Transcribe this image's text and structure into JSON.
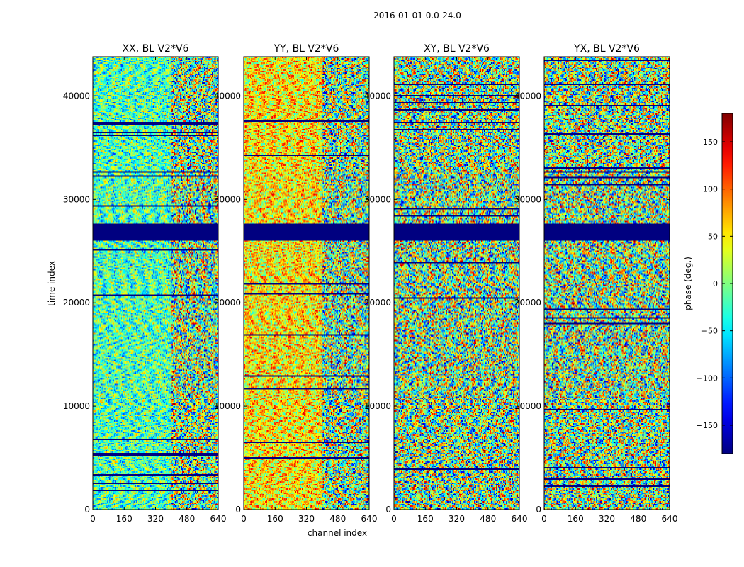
{
  "figure": {
    "suptitle": "2016-01-01 0.0-24.0",
    "xlabel": "channel index",
    "ylabel": "time index"
  },
  "chart_data": {
    "type": "heatmap",
    "panels": [
      {
        "title": "XX, BL V2*V6",
        "hint": "xx"
      },
      {
        "title": "YY, BL V2*V6",
        "hint": "yy"
      },
      {
        "title": "XY, BL V2*V6",
        "hint": "xy"
      },
      {
        "title": "YX, BL V2*V6",
        "hint": "yx"
      }
    ],
    "xlim": [
      0,
      640
    ],
    "ylim": [
      0,
      43800
    ],
    "xticks": [
      0,
      160,
      320,
      480,
      640
    ],
    "xtick_labels": [
      "0",
      "160",
      "320",
      "480",
      "640"
    ],
    "yticks": [
      0,
      10000,
      20000,
      30000,
      40000
    ],
    "ytick_labels": [
      "0",
      "10000",
      "20000",
      "30000",
      "40000"
    ],
    "flagged_time_range": [
      26000,
      27700
    ],
    "colorbar": {
      "label": "phase (deg.)",
      "vmin": -180,
      "vmax": 180,
      "ticks": [
        -150,
        -100,
        -50,
        0,
        50,
        100,
        150
      ],
      "tick_labels": [
        "−150",
        "−100",
        "−50",
        "0",
        "50",
        "100",
        "150"
      ],
      "colormap": "jet"
    }
  }
}
